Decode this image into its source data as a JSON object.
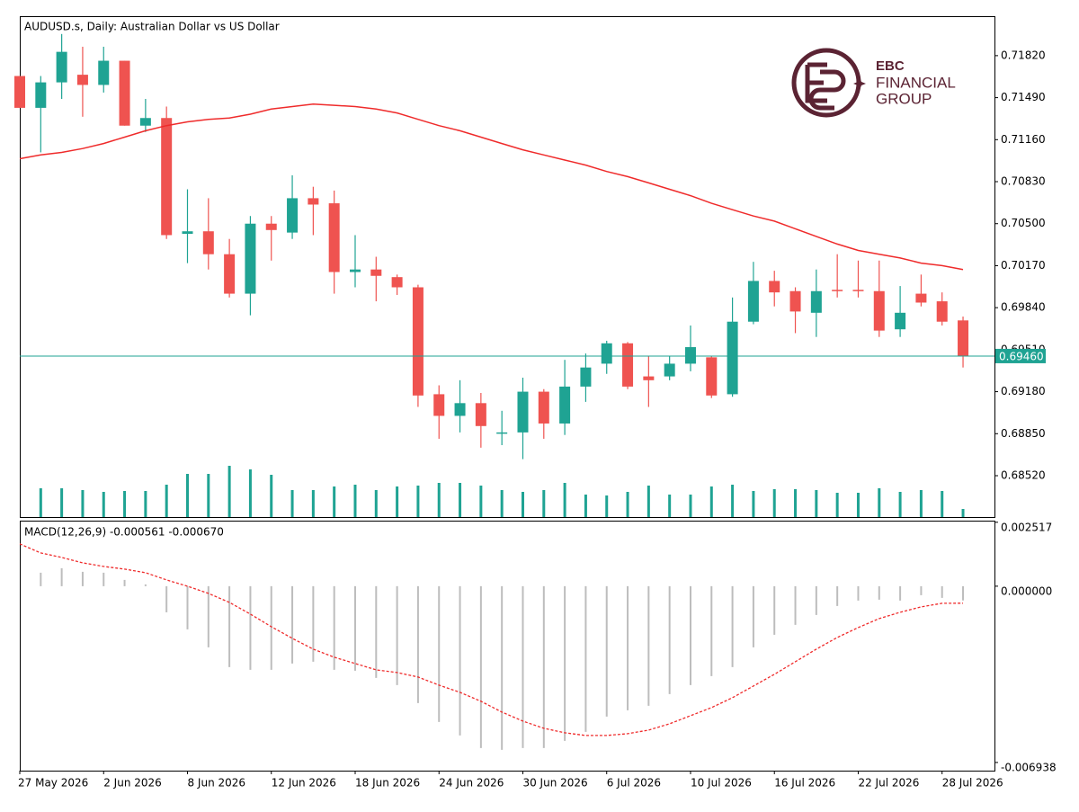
{
  "chart_data": {
    "type": "candlestick",
    "title": "AUDUSD.s, Daily:  Australian Dollar vs US Dollar",
    "categories": [
      "27 May 2026",
      null,
      null,
      null,
      "2 Jun 2026",
      null,
      null,
      null,
      "8 Jun 2026",
      null,
      null,
      null,
      "12 Jun 2026",
      null,
      null,
      null,
      "18 Jun 2026",
      null,
      null,
      null,
      "24 Jun 2026",
      null,
      null,
      null,
      "30 Jun 2026",
      null,
      null,
      null,
      "6 Jul 2026",
      null,
      null,
      null,
      "10 Jul 2026",
      null,
      null,
      null,
      "16 Jul 2026",
      null,
      null,
      null,
      "22 Jul 2026",
      null,
      null,
      null,
      "28 Jul 2026",
      null
    ],
    "open": [
      0.7166,
      0.7141,
      0.7161,
      0.7167,
      0.7159,
      0.7178,
      0.7127,
      0.7133,
      0.7042,
      0.7044,
      0.7026,
      0.6995,
      0.705,
      0.7043,
      0.707,
      0.7066,
      0.7012,
      0.7014,
      0.7008,
      0.7,
      0.6916,
      0.6899,
      0.6909,
      0.6885,
      0.6886,
      0.6918,
      0.6893,
      0.6922,
      0.694,
      0.6956,
      0.693,
      0.693,
      0.694,
      0.6945,
      0.6916,
      0.6973,
      0.7005,
      0.6997,
      0.698,
      0.6998,
      0.6998,
      0.6997,
      0.6967,
      0.6995,
      0.6989,
      0.6974
    ],
    "high": [
      0.7166,
      0.7166,
      0.7199,
      0.7189,
      0.7189,
      0.7178,
      0.7148,
      0.7142,
      0.7077,
      0.707,
      0.7038,
      0.7056,
      0.7056,
      0.7088,
      0.7079,
      0.7076,
      0.7041,
      0.7024,
      0.701,
      0.7002,
      0.6923,
      0.6927,
      0.6917,
      0.6903,
      0.6929,
      0.692,
      0.6943,
      0.6948,
      0.6958,
      0.6957,
      0.6946,
      0.6946,
      0.697,
      0.6946,
      0.6992,
      0.702,
      0.7013,
      0.7,
      0.7014,
      0.7026,
      0.7021,
      0.7021,
      0.7001,
      0.701,
      0.6996,
      0.6977
    ],
    "low": [
      0.7141,
      0.7106,
      0.7148,
      0.7134,
      0.7153,
      0.7127,
      0.7122,
      0.7038,
      0.7019,
      0.7014,
      0.6992,
      0.6978,
      0.7021,
      0.7038,
      0.7041,
      0.6995,
      0.7,
      0.6989,
      0.6994,
      0.6906,
      0.6881,
      0.6886,
      0.6874,
      0.6876,
      0.6865,
      0.6881,
      0.6884,
      0.691,
      0.6932,
      0.692,
      0.6906,
      0.6927,
      0.6934,
      0.6913,
      0.6914,
      0.6971,
      0.6985,
      0.6964,
      0.6961,
      0.6992,
      0.6992,
      0.6961,
      0.6961,
      0.6985,
      0.697,
      0.6937
    ],
    "close": [
      0.7141,
      0.7161,
      0.7185,
      0.7159,
      0.7178,
      0.7127,
      0.7133,
      0.7041,
      0.7044,
      0.7026,
      0.6995,
      0.705,
      0.7045,
      0.707,
      0.7065,
      0.7012,
      0.7014,
      0.7009,
      0.7,
      0.6915,
      0.6899,
      0.6909,
      0.6891,
      0.6886,
      0.6918,
      0.6893,
      0.6922,
      0.6937,
      0.6956,
      0.6922,
      0.6927,
      0.694,
      0.6953,
      0.6915,
      0.6973,
      0.7005,
      0.6996,
      0.6981,
      0.6997,
      0.6997,
      0.6997,
      0.6966,
      0.698,
      0.6988,
      0.6973,
      0.6946
    ],
    "up_color": "#1fa393",
    "down_color": "#ef5350",
    "ylim": [
      0.68195,
      0.7213
    ],
    "yticks": [
      {
        "value": 0.7182,
        "label": "0.71820"
      },
      {
        "value": 0.7149,
        "label": "0.71490"
      },
      {
        "value": 0.7116,
        "label": "0.71160"
      },
      {
        "value": 0.7083,
        "label": "0.70830"
      },
      {
        "value": 0.705,
        "label": "0.70500"
      },
      {
        "value": 0.7017,
        "label": "0.70170"
      },
      {
        "value": 0.6984,
        "label": "0.69840"
      },
      {
        "value": 0.6951,
        "label": "0.69510"
      },
      {
        "value": 0.6918,
        "label": "0.69180"
      },
      {
        "value": 0.6885,
        "label": "0.68850"
      },
      {
        "value": 0.6852,
        "label": "0.68520"
      }
    ],
    "ma": {
      "color": "#ef2b2b",
      "values": [
        0.7101,
        0.7104,
        0.7106,
        0.7109,
        0.7113,
        0.7118,
        0.7123,
        0.7127,
        0.713,
        0.7132,
        0.7133,
        0.7136,
        0.714,
        0.7142,
        0.7144,
        0.7143,
        0.7142,
        0.714,
        0.7137,
        0.7132,
        0.7127,
        0.7123,
        0.7118,
        0.7113,
        0.7108,
        0.7104,
        0.71,
        0.7096,
        0.7091,
        0.7087,
        0.7082,
        0.7077,
        0.7072,
        0.7066,
        0.7061,
        0.7056,
        0.7052,
        0.7046,
        0.704,
        0.7034,
        0.7029,
        0.7026,
        0.7023,
        0.7019,
        0.7017,
        0.7014
      ]
    },
    "volume": {
      "color": "#1fa393",
      "values": [
        null,
        32,
        32,
        30,
        28,
        29,
        29,
        36,
        48,
        48,
        57,
        53,
        47,
        30,
        30,
        34,
        36,
        30,
        34,
        35,
        38,
        38,
        35,
        30,
        28,
        30,
        38,
        25,
        24,
        28,
        35,
        25,
        25,
        34,
        36,
        29,
        31,
        31,
        30,
        27,
        27,
        32,
        28,
        30,
        29,
        9
      ]
    },
    "last_price": {
      "value": 0.6946,
      "label": "0.69460",
      "color": "#1fa393"
    },
    "macd": {
      "label": "MACD(12,26,9) -0.000561 -0.000670",
      "ylim": [
        -0.00726,
        0.00258
      ],
      "yticks": [
        0.002517,
        {
          "value": 0,
          "label": "0.000000"
        },
        -0.006938
      ],
      "hist_color": "#bdbdbd",
      "signal_color": "#ef2b2b",
      "histogram": [
        null,
        0.000531,
        0.000708,
        0.000566,
        0.000531,
        0.000248,
        7.1e-05,
        -0.001027,
        -0.001699,
        -0.002407,
        -0.003186,
        -0.003292,
        -0.003292,
        -0.003044,
        -0.002973,
        -0.003292,
        -0.003327,
        -0.003611,
        -0.003894,
        -0.004602,
        -0.005345,
        -0.005876,
        -0.006372,
        -0.006442,
        -0.006372,
        -0.006372,
        -0.006088,
        -0.005735,
        -0.005133,
        -0.004885,
        -0.004708,
        -0.004248,
        -0.003894,
        -0.00354,
        -0.003186,
        -0.002407,
        -0.001912,
        -0.001522,
        -0.001133,
        -0.000779,
        -0.000566,
        -0.000531,
        -0.000566,
        -0.000354,
        -0.00046,
        -0.000561
      ],
      "signal": [
        0.001664,
        0.00131,
        0.001133,
        0.00092,
        0.000779,
        0.000673,
        0.000531,
        0.000248,
        0,
        -0.000283,
        -0.000637,
        -0.001097,
        -0.001593,
        -0.002053,
        -0.002478,
        -0.002796,
        -0.003044,
        -0.003292,
        -0.003398,
        -0.003575,
        -0.003894,
        -0.004177,
        -0.004531,
        -0.004956,
        -0.00531,
        -0.005593,
        -0.00577,
        -0.005876,
        -0.005876,
        -0.005805,
        -0.005664,
        -0.005416,
        -0.005097,
        -0.004779,
        -0.004389,
        -0.003929,
        -0.003469,
        -0.002973,
        -0.002478,
        -0.002018,
        -0.001628,
        -0.001274,
        -0.001027,
        -0.000814,
        -0.000673,
        -0.00067
      ]
    }
  },
  "logo": {
    "line1": "EBC",
    "line2": "FINANCIAL",
    "line3": "GROUP"
  }
}
